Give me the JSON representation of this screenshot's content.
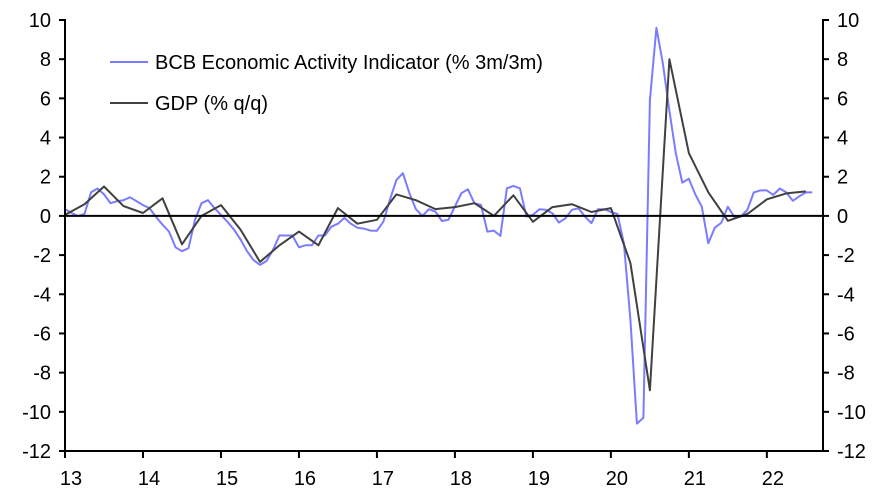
{
  "chart_data": {
    "type": "line",
    "title": "",
    "xlabel": "",
    "ylabel": "",
    "ylim": [
      -12,
      10
    ],
    "yticks": [
      10,
      8,
      6,
      4,
      2,
      0,
      -2,
      -4,
      -6,
      -8,
      -10,
      -12
    ],
    "ytick_labels": [
      "10",
      "8",
      "6",
      "4",
      "2",
      "0",
      "-2",
      "-4",
      "-6",
      "-8",
      "-10",
      "-12"
    ],
    "xlim": [
      2013,
      2022.72
    ],
    "xticks": [
      2013,
      2014,
      2015,
      2016,
      2017,
      2018,
      2019,
      2020,
      2021,
      2022
    ],
    "xtick_labels": [
      "13",
      "14",
      "15",
      "16",
      "17",
      "18",
      "19",
      "20",
      "21",
      "22"
    ],
    "grid": false,
    "legend_position": "top-left",
    "series": [
      {
        "name": "BCB Economic Activity Indicator (% 3m/3m)",
        "color": "#7b7bff",
        "x_start": 2013.0,
        "x_step": 0.08333,
        "values": [
          0.35,
          0.15,
          0.0,
          0.1,
          1.2,
          1.4,
          1.1,
          0.65,
          0.75,
          0.8,
          0.95,
          0.75,
          0.55,
          0.4,
          -0.05,
          -0.45,
          -0.8,
          -1.6,
          -1.8,
          -1.65,
          -0.2,
          0.65,
          0.8,
          0.4,
          0.05,
          -0.3,
          -0.7,
          -1.2,
          -1.8,
          -2.25,
          -2.5,
          -2.3,
          -1.75,
          -1.0,
          -1.0,
          -1.0,
          -1.6,
          -1.5,
          -1.5,
          -1.0,
          -1.0,
          -0.55,
          -0.4,
          -0.1,
          -0.4,
          -0.6,
          -0.65,
          -0.75,
          -0.76,
          -0.29,
          0.82,
          1.84,
          2.18,
          1.16,
          0.34,
          0.0,
          0.34,
          0.22,
          -0.26,
          -0.2,
          0.48,
          1.16,
          1.36,
          0.65,
          0.56,
          -0.8,
          -0.75,
          -1.02,
          1.41,
          1.53,
          1.41,
          -0.03,
          0.05,
          0.34,
          0.31,
          0.14,
          -0.34,
          -0.12,
          0.31,
          0.39,
          -0.03,
          -0.37,
          0.34,
          0.34,
          0.2,
          0.1,
          -1.4,
          -5.3,
          -10.6,
          -10.3,
          5.9,
          9.6,
          7.8,
          5.4,
          3.2,
          1.7,
          1.9,
          1.1,
          0.47,
          -1.4,
          -0.6,
          -0.35,
          0.47,
          -0.05,
          -0.03,
          0.3,
          1.2,
          1.3,
          1.3,
          1.07,
          1.4,
          1.2,
          0.77,
          1.0,
          1.2,
          1.2
        ]
      },
      {
        "name": "GDP (% q/q)",
        "color": "#404040",
        "x_start": 2013.0,
        "x_step": 0.25,
        "values": [
          0.05,
          0.6,
          1.5,
          0.5,
          0.15,
          0.9,
          -1.45,
          0.0,
          0.55,
          -0.7,
          -2.35,
          -1.5,
          -0.8,
          -1.5,
          0.4,
          -0.4,
          -0.2,
          1.1,
          0.8,
          0.35,
          0.45,
          0.65,
          0.0,
          1.05,
          -0.3,
          0.45,
          0.6,
          0.2,
          0.4,
          -2.4,
          -8.9,
          8.0,
          3.2,
          1.2,
          -0.25,
          0.1,
          0.85,
          1.15,
          1.25
        ]
      }
    ]
  }
}
